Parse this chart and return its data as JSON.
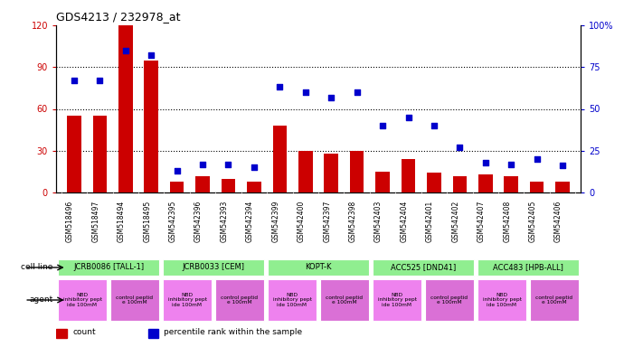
{
  "title": "GDS4213 / 232978_at",
  "samples": [
    "GSM518496",
    "GSM518497",
    "GSM518494",
    "GSM518495",
    "GSM542395",
    "GSM542396",
    "GSM542393",
    "GSM542394",
    "GSM542399",
    "GSM542400",
    "GSM542397",
    "GSM542398",
    "GSM542403",
    "GSM542404",
    "GSM542401",
    "GSM542402",
    "GSM542407",
    "GSM542408",
    "GSM542405",
    "GSM542406"
  ],
  "counts": [
    55,
    55,
    120,
    95,
    8,
    12,
    10,
    8,
    48,
    30,
    28,
    30,
    15,
    24,
    14,
    12,
    13,
    12,
    8,
    8
  ],
  "percentiles": [
    67,
    67,
    85,
    82,
    13,
    17,
    17,
    15,
    63,
    60,
    57,
    60,
    40,
    45,
    40,
    27,
    18,
    17,
    20,
    16
  ],
  "cell_lines": [
    {
      "name": "JCRB0086 [TALL-1]",
      "start": 0,
      "end": 4,
      "color": "#90ee90"
    },
    {
      "name": "JCRB0033 [CEM]",
      "start": 4,
      "end": 8,
      "color": "#90ee90"
    },
    {
      "name": "KOPT-K",
      "start": 8,
      "end": 12,
      "color": "#90ee90"
    },
    {
      "name": "ACC525 [DND41]",
      "start": 12,
      "end": 16,
      "color": "#90ee90"
    },
    {
      "name": "ACC483 [HPB-ALL]",
      "start": 16,
      "end": 20,
      "color": "#90ee90"
    }
  ],
  "agents": [
    {
      "name": "NBD\ninhibitory pept\nide 100mM",
      "start": 0,
      "end": 2,
      "color": "#ee82ee"
    },
    {
      "name": "control peptid\ne 100mM",
      "start": 2,
      "end": 4,
      "color": "#da70d6"
    },
    {
      "name": "NBD\ninhibitory pept\nide 100mM",
      "start": 4,
      "end": 6,
      "color": "#ee82ee"
    },
    {
      "name": "control peptid\ne 100mM",
      "start": 6,
      "end": 8,
      "color": "#da70d6"
    },
    {
      "name": "NBD\ninhibitory pept\nide 100mM",
      "start": 8,
      "end": 10,
      "color": "#ee82ee"
    },
    {
      "name": "control peptid\ne 100mM",
      "start": 10,
      "end": 12,
      "color": "#da70d6"
    },
    {
      "name": "NBD\ninhibitory pept\nide 100mM",
      "start": 12,
      "end": 14,
      "color": "#ee82ee"
    },
    {
      "name": "control peptid\ne 100mM",
      "start": 14,
      "end": 16,
      "color": "#da70d6"
    },
    {
      "name": "NBD\ninhibitory pept\nide 100mM",
      "start": 16,
      "end": 18,
      "color": "#ee82ee"
    },
    {
      "name": "control peptid\ne 100mM",
      "start": 18,
      "end": 20,
      "color": "#da70d6"
    }
  ],
  "bar_color": "#cc0000",
  "dot_color": "#0000cc",
  "left_ylim": [
    0,
    120
  ],
  "right_ylim": [
    0,
    100
  ],
  "left_yticks": [
    0,
    30,
    60,
    90,
    120
  ],
  "right_yticks": [
    0,
    25,
    50,
    75,
    100
  ],
  "right_yticklabels": [
    "0",
    "25",
    "50",
    "75",
    "100%"
  ],
  "background_color": "#ffffff",
  "plot_bg_color": "#ffffff",
  "label_row_bg": "#d4d4d4"
}
